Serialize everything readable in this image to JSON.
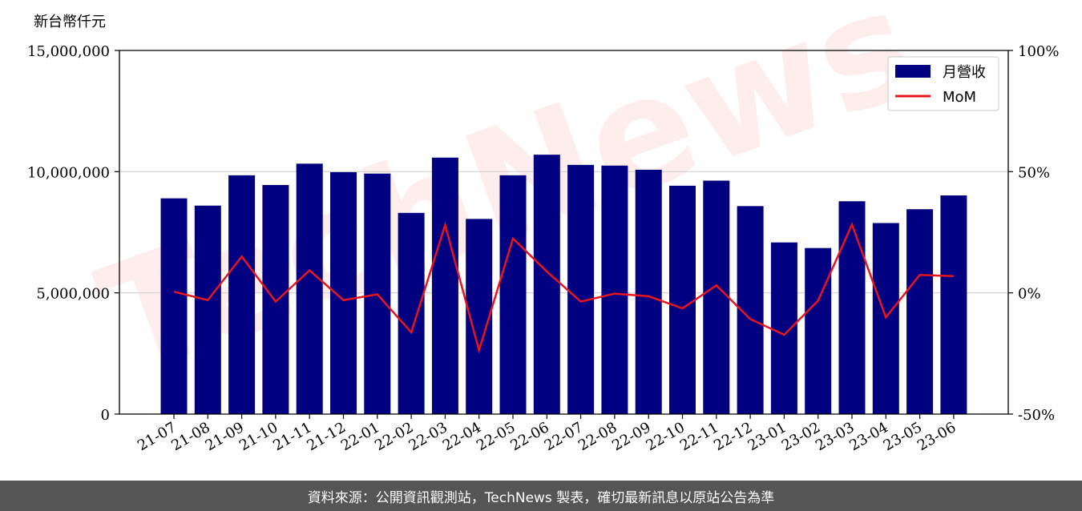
{
  "chart_data": {
    "type": "bar",
    "unit_label": "新台幣仟元",
    "categories": [
      "21-07",
      "21-08",
      "21-09",
      "21-10",
      "21-11",
      "21-12",
      "22-01",
      "22-02",
      "22-03",
      "22-04",
      "22-05",
      "22-06",
      "22-07",
      "22-08",
      "22-09",
      "22-10",
      "22-11",
      "22-12",
      "23-01",
      "23-02",
      "23-03",
      "23-04",
      "23-05",
      "23-06"
    ],
    "series": [
      {
        "name": "月營收",
        "type": "bar",
        "axis": "left",
        "color": "#000080",
        "values": [
          8900000,
          8600000,
          9850000,
          9450000,
          10330000,
          9980000,
          9920000,
          8300000,
          10580000,
          8050000,
          9850000,
          10700000,
          10280000,
          10250000,
          10080000,
          9420000,
          9630000,
          8580000,
          7080000,
          6850000,
          8780000,
          7880000,
          8450000,
          9020000
        ]
      },
      {
        "name": "MoM",
        "type": "line",
        "axis": "right",
        "color": "#e8141e",
        "values": [
          0.5,
          -3.0,
          15.0,
          -3.6,
          9.3,
          -3.0,
          -0.6,
          -16.3,
          28.0,
          -23.7,
          22.4,
          8.8,
          -3.6,
          -0.3,
          -1.4,
          -6.4,
          3.1,
          -10.8,
          -17.3,
          -3.2,
          28.2,
          -10.1,
          7.4,
          6.9
        ]
      }
    ],
    "y_left": {
      "range": [
        0,
        15000000
      ],
      "ticks": [
        0,
        5000000,
        10000000,
        15000000
      ],
      "tick_labels": [
        "0",
        "5,000,000",
        "10,000,000",
        "15,000,000"
      ]
    },
    "y_right": {
      "range": [
        -50,
        100
      ],
      "ticks": [
        -50,
        0,
        50,
        100
      ],
      "tick_labels": [
        "-50%",
        "0%",
        "50%",
        "100%"
      ]
    },
    "grid": "horizontal",
    "legend_position": "top-right",
    "watermark": "TechNews"
  },
  "footer": {
    "source_text": "資料來源：公開資訊觀測站，TechNews 製表，確切最新訊息以原站公告為準"
  }
}
